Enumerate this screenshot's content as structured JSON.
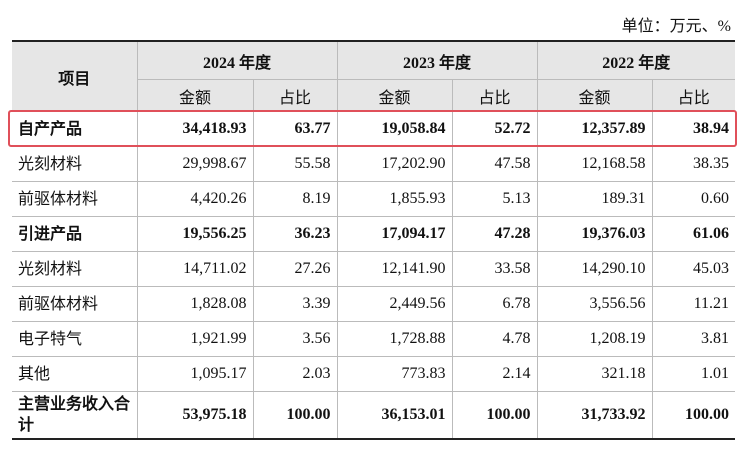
{
  "unit": "单位：万元、%",
  "header": {
    "item": "项目",
    "years": [
      "2024 年度",
      "2023 年度",
      "2022 年度"
    ],
    "sub": [
      "金额",
      "占比"
    ]
  },
  "rows": [
    {
      "label": "自产产品",
      "bold": true,
      "highlight": true,
      "cells": [
        "34,418.93",
        "63.77",
        "19,058.84",
        "52.72",
        "12,357.89",
        "38.94"
      ]
    },
    {
      "label": "光刻材料",
      "cells": [
        "29,998.67",
        "55.58",
        "17,202.90",
        "47.58",
        "12,168.58",
        "38.35"
      ]
    },
    {
      "label": "前驱体材料",
      "cells": [
        "4,420.26",
        "8.19",
        "1,855.93",
        "5.13",
        "189.31",
        "0.60"
      ]
    },
    {
      "label": "引进产品",
      "bold": true,
      "cells": [
        "19,556.25",
        "36.23",
        "17,094.17",
        "47.28",
        "19,376.03",
        "61.06"
      ]
    },
    {
      "label": "光刻材料",
      "cells": [
        "14,711.02",
        "27.26",
        "12,141.90",
        "33.58",
        "14,290.10",
        "45.03"
      ]
    },
    {
      "label": "前驱体材料",
      "cells": [
        "1,828.08",
        "3.39",
        "2,449.56",
        "6.78",
        "3,556.56",
        "11.21"
      ]
    },
    {
      "label": "电子特气",
      "cells": [
        "1,921.99",
        "3.56",
        "1,728.88",
        "4.78",
        "1,208.19",
        "3.81"
      ]
    },
    {
      "label": "其他",
      "cells": [
        "1,095.17",
        "2.03",
        "773.83",
        "2.14",
        "321.18",
        "1.01"
      ]
    },
    {
      "label": "主营业务收入合计",
      "bold": true,
      "cells": [
        "53,975.18",
        "100.00",
        "36,153.01",
        "100.00",
        "31,733.92",
        "100.00"
      ]
    }
  ]
}
